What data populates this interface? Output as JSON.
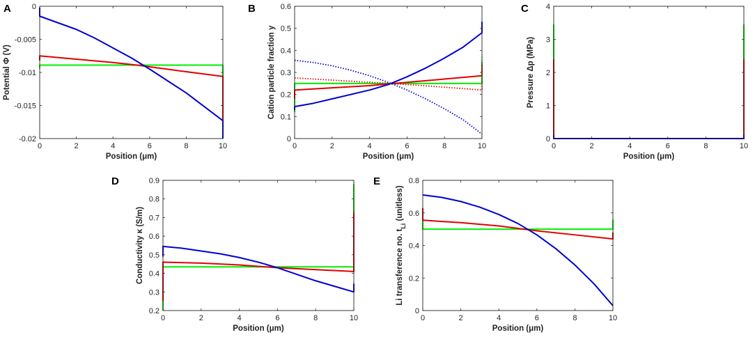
{
  "chart_data": [
    {
      "letter": "A",
      "type": "line",
      "xlabel": "Position (μm)",
      "ylabel": "Potential Φ (V)",
      "xlim": [
        0,
        10
      ],
      "ylim": [
        -0.02,
        0
      ],
      "xticks": [
        "0",
        "2",
        "4",
        "6",
        "8",
        "10"
      ],
      "yticks": [
        "-0.02",
        "-0.015",
        "-0.01",
        "-0.005",
        "0"
      ],
      "series": [
        {
          "name": "green",
          "color": "#00ee00",
          "style": "solid",
          "x": [
            0,
            0,
            10,
            10
          ],
          "y": [
            -0.0094,
            -0.0089,
            -0.0089,
            -0.0107
          ]
        },
        {
          "name": "red",
          "color": "#e00000",
          "style": "solid",
          "x": [
            0,
            0,
            2,
            4,
            5.3,
            8,
            10,
            10
          ],
          "y": [
            -0.0082,
            -0.0075,
            -0.008,
            -0.0085,
            -0.0089,
            -0.0099,
            -0.0106,
            -0.0175
          ]
        },
        {
          "name": "blue",
          "color": "#0000d0",
          "style": "solid",
          "x": [
            0,
            0,
            1,
            2,
            3,
            4,
            5,
            6,
            7,
            8,
            9,
            10,
            10
          ],
          "y": [
            -0.0002,
            -0.0015,
            -0.0025,
            -0.0035,
            -0.0048,
            -0.0063,
            -0.0078,
            -0.0095,
            -0.0113,
            -0.0131,
            -0.0152,
            -0.0173,
            -0.02
          ]
        }
      ]
    },
    {
      "letter": "B",
      "type": "line",
      "xlabel": "Position (μm)",
      "ylabel": "Cation particle fraction y",
      "xlim": [
        0,
        10
      ],
      "ylim": [
        0,
        0.6
      ],
      "xticks": [
        "0",
        "2",
        "4",
        "6",
        "8",
        "10"
      ],
      "yticks": [
        "0",
        "0.1",
        "0.2",
        "0.3",
        "0.4",
        "0.5",
        "0.6"
      ],
      "series": [
        {
          "name": "green",
          "color": "#00ee00",
          "style": "solid",
          "x": [
            0,
            0,
            10,
            10
          ],
          "y": [
            0.12,
            0.25,
            0.25,
            0.35
          ]
        },
        {
          "name": "red",
          "color": "#e00000",
          "style": "solid",
          "x": [
            0,
            0,
            2,
            4,
            6,
            8,
            10,
            10
          ],
          "y": [
            0.18,
            0.22,
            0.23,
            0.24,
            0.255,
            0.27,
            0.285,
            0.34
          ]
        },
        {
          "name": "blue",
          "color": "#0000d0",
          "style": "solid",
          "x": [
            0,
            0,
            1,
            2,
            3,
            4,
            5,
            6,
            7,
            8,
            9,
            10,
            10
          ],
          "y": [
            0.13,
            0.145,
            0.16,
            0.18,
            0.2,
            0.22,
            0.245,
            0.28,
            0.32,
            0.365,
            0.415,
            0.48,
            0.53
          ]
        },
        {
          "name": "green-dotted",
          "color": "#00ee00",
          "style": "dotted",
          "x": [
            10,
            10,
            10
          ],
          "y": [
            0.25,
            0.33,
            0.38
          ]
        },
        {
          "name": "red-dotted",
          "color": "#e00000",
          "style": "dotted",
          "x": [
            0,
            2,
            4,
            6,
            8,
            10,
            10
          ],
          "y": [
            0.275,
            0.265,
            0.255,
            0.245,
            0.233,
            0.22,
            0.27
          ]
        },
        {
          "name": "blue-dotted",
          "color": "#0000d0",
          "style": "dotted",
          "x": [
            0,
            1,
            2,
            3,
            4,
            5,
            6,
            7,
            8,
            9,
            10
          ],
          "y": [
            0.355,
            0.345,
            0.33,
            0.31,
            0.285,
            0.255,
            0.22,
            0.18,
            0.135,
            0.085,
            0.02
          ]
        }
      ]
    },
    {
      "letter": "C",
      "type": "line",
      "xlabel": "Position (μm)",
      "ylabel": "Pressure Δp (MPa)",
      "xlim": [
        0,
        10
      ],
      "ylim": [
        0,
        4
      ],
      "xticks": [
        "0",
        "2",
        "4",
        "6",
        "8",
        "10"
      ],
      "yticks": [
        "0",
        "1",
        "2",
        "3",
        "4"
      ],
      "series": [
        {
          "name": "green",
          "color": "#00ee00",
          "style": "solid",
          "x": [
            0,
            0,
            0,
            10,
            10,
            10
          ],
          "y": [
            3.45,
            0,
            0,
            0,
            0,
            3.45
          ]
        },
        {
          "name": "red",
          "color": "#e00000",
          "style": "solid",
          "x": [
            0,
            0,
            0,
            10,
            10,
            10
          ],
          "y": [
            2.4,
            0,
            0,
            0,
            0,
            2.4
          ]
        },
        {
          "name": "blue",
          "color": "#0000d0",
          "style": "solid",
          "x": [
            0,
            0,
            0,
            10,
            10,
            10
          ],
          "y": [
            0.12,
            0,
            0,
            0,
            0,
            0.12
          ]
        }
      ]
    },
    {
      "letter": "D",
      "type": "line",
      "xlabel": "Position (μm)",
      "ylabel": "Conductivity κ (S/m)",
      "xlim": [
        0,
        10
      ],
      "ylim": [
        0.2,
        0.9
      ],
      "xticks": [
        "0",
        "2",
        "4",
        "6",
        "8",
        "10"
      ],
      "yticks": [
        "0.2",
        "0.3",
        "0.4",
        "0.5",
        "0.6",
        "0.7",
        "0.8",
        "0.9"
      ],
      "series": [
        {
          "name": "green",
          "color": "#00ee00",
          "style": "solid",
          "x": [
            0,
            0,
            10,
            10
          ],
          "y": [
            0.2,
            0.435,
            0.435,
            0.88
          ]
        },
        {
          "name": "red",
          "color": "#e00000",
          "style": "solid",
          "x": [
            0,
            0,
            2,
            4,
            6,
            8,
            10,
            10
          ],
          "y": [
            0.25,
            0.46,
            0.455,
            0.445,
            0.43,
            0.42,
            0.41,
            0.73
          ]
        },
        {
          "name": "blue",
          "color": "#0000d0",
          "style": "solid",
          "x": [
            0,
            0,
            1,
            2,
            3,
            4,
            5,
            6,
            7,
            8,
            9,
            10,
            10
          ],
          "y": [
            0.49,
            0.545,
            0.535,
            0.52,
            0.505,
            0.485,
            0.46,
            0.43,
            0.395,
            0.36,
            0.33,
            0.3,
            0.345
          ]
        }
      ]
    },
    {
      "letter": "E",
      "type": "line",
      "xlabel": "Position (μm)",
      "ylabel": "Li transference no. t",
      "ylabel_sub": "Li",
      "ylabel_suffix": " (unitless)",
      "xlim": [
        0,
        10
      ],
      "ylim": [
        0,
        0.8
      ],
      "xticks": [
        "0",
        "2",
        "4",
        "6",
        "8",
        "10"
      ],
      "yticks": [
        "0",
        "0.2",
        "0.4",
        "0.6",
        "0.8"
      ],
      "series": [
        {
          "name": "green",
          "color": "#00ee00",
          "style": "solid",
          "x": [
            0,
            0,
            10,
            10
          ],
          "y": [
            0.6,
            0.5,
            0.5,
            0.56
          ]
        },
        {
          "name": "red",
          "color": "#e00000",
          "style": "solid",
          "x": [
            0,
            0,
            2,
            4,
            6,
            8,
            10,
            10
          ],
          "y": [
            0.63,
            0.555,
            0.54,
            0.52,
            0.49,
            0.465,
            0.44,
            0.48
          ]
        },
        {
          "name": "blue",
          "color": "#0000d0",
          "style": "solid",
          "x": [
            0,
            1,
            2,
            3,
            4,
            5,
            6,
            7,
            8,
            9,
            10
          ],
          "y": [
            0.71,
            0.695,
            0.67,
            0.635,
            0.59,
            0.535,
            0.465,
            0.38,
            0.28,
            0.165,
            0.03
          ]
        }
      ]
    }
  ]
}
